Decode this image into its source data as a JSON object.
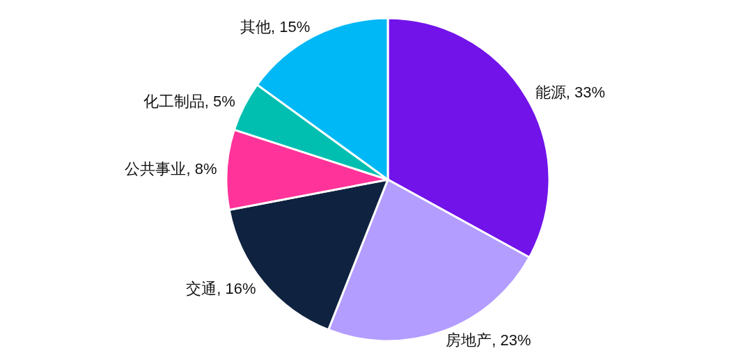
{
  "chart_data": {
    "type": "pie",
    "categories": [
      "能源",
      "房地产",
      "交通",
      "公共事业",
      "化工制品",
      "其他"
    ],
    "values": [
      33,
      23,
      16,
      8,
      5,
      15
    ],
    "colors": [
      "#7213ea",
      "#b39dff",
      "#0f2340",
      "#ff3399",
      "#00bfb0",
      "#00b8f5"
    ],
    "value_labels": [
      "33%",
      "23%",
      "16%",
      "8%",
      "5%",
      "15%"
    ]
  }
}
